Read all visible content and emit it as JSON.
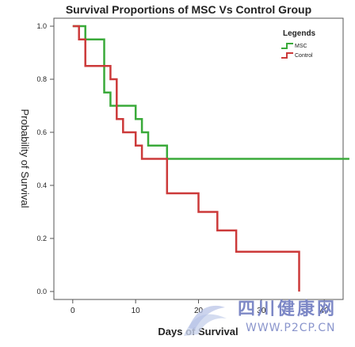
{
  "chart_data": {
    "type": "line",
    "step": true,
    "title": "Survival Proportions of MSC Vs Control Group",
    "xlabel": "Days of Survival",
    "ylabel": "Probability of Survival",
    "xlim": [
      -3,
      43
    ],
    "ylim": [
      -0.03,
      1.03
    ],
    "x_ticks": [
      0,
      10,
      20,
      30,
      40
    ],
    "y_ticks": [
      0.0,
      0.2,
      0.4,
      0.6,
      0.8,
      1.0
    ],
    "y_tick_labels": [
      "0.0",
      "0.2",
      "0.4",
      "0.6",
      "0.8",
      "1.0"
    ],
    "x_tick_labels": [
      "0",
      "10",
      "20",
      "30",
      "40"
    ],
    "legend": {
      "title": "Legends",
      "position": "top-right"
    },
    "grid": false,
    "series": [
      {
        "name": "MSC",
        "color": "#3aaa3a",
        "x": [
          0,
          2,
          2,
          5,
          5,
          6,
          6,
          10,
          10,
          11,
          11,
          12,
          12,
          15,
          15,
          44
        ],
        "y": [
          1.0,
          1.0,
          0.95,
          0.95,
          0.75,
          0.75,
          0.7,
          0.7,
          0.65,
          0.65,
          0.6,
          0.6,
          0.55,
          0.55,
          0.5,
          0.5
        ]
      },
      {
        "name": "Control",
        "color": "#cc3a3a",
        "x": [
          0,
          1,
          1,
          2,
          2,
          6,
          6,
          7,
          7,
          8,
          8,
          10,
          10,
          11,
          11,
          15,
          15,
          20,
          20,
          23,
          23,
          26,
          26,
          36,
          36
        ],
        "y": [
          1.0,
          1.0,
          0.95,
          0.95,
          0.85,
          0.85,
          0.8,
          0.8,
          0.65,
          0.65,
          0.6,
          0.6,
          0.55,
          0.55,
          0.5,
          0.5,
          0.37,
          0.37,
          0.3,
          0.3,
          0.23,
          0.23,
          0.15,
          0.15,
          0.0
        ]
      }
    ]
  },
  "watermark": {
    "text_cn": "四川健康网",
    "url": "WWW.P2CP.CN"
  }
}
